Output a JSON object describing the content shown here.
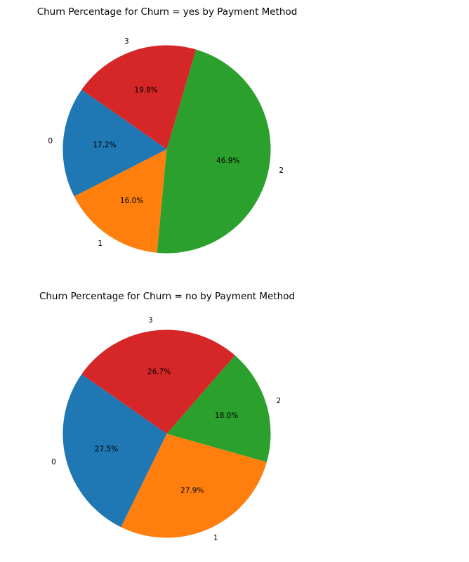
{
  "chart_data": [
    {
      "type": "pie",
      "title": "Churn Percentage for Churn = yes by Payment Method",
      "categories": [
        "0",
        "1",
        "2",
        "3"
      ],
      "values": [
        17.2,
        16.0,
        46.9,
        19.8
      ],
      "value_labels": [
        "17.2%",
        "16.0%",
        "46.9%",
        "19.8%"
      ],
      "colors": [
        "#1f77b4",
        "#ff7f0e",
        "#2ca02c",
        "#d62728"
      ],
      "legend": "none"
    },
    {
      "type": "pie",
      "title": "Churn Percentage for Churn = no by Payment Method",
      "categories": [
        "0",
        "1",
        "2",
        "3"
      ],
      "values": [
        27.5,
        27.9,
        18.0,
        26.7
      ],
      "value_labels": [
        "27.5%",
        "27.9%",
        "18.0%",
        "26.7%"
      ],
      "colors": [
        "#1f77b4",
        "#ff7f0e",
        "#2ca02c",
        "#d62728"
      ],
      "legend": "none"
    }
  ]
}
